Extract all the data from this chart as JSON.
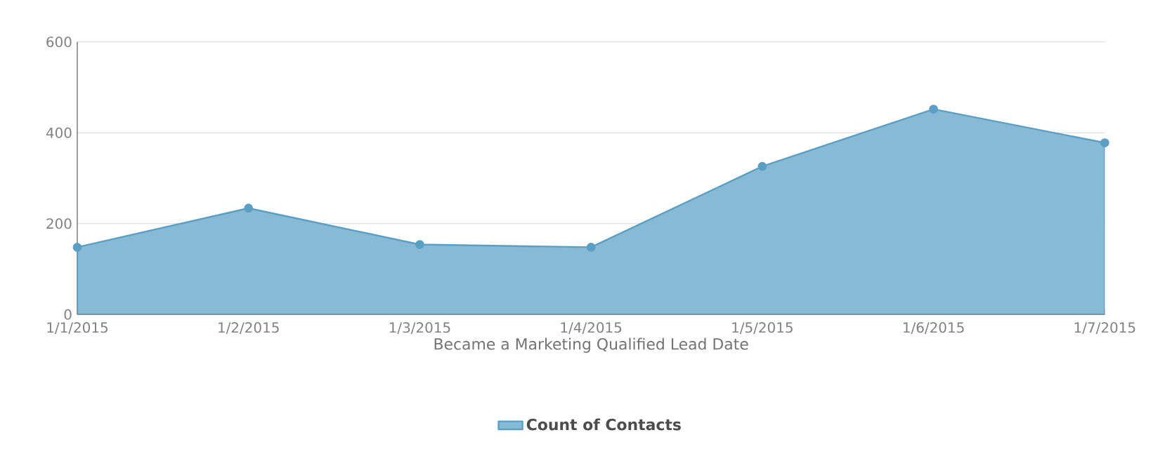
{
  "chart_data": {
    "type": "area",
    "xlabel": "Became a Marketing Qualified Lead Date",
    "categories": [
      "1/1/2015",
      "1/2/2015",
      "1/3/2015",
      "1/4/2015",
      "1/5/2015",
      "1/6/2015",
      "1/7/2015"
    ],
    "series": [
      {
        "name": "Count of Contacts",
        "color": "#5b9fc4",
        "values": [
          148,
          234,
          154,
          148,
          326,
          452,
          378
        ]
      }
    ],
    "ylim": [
      0,
      600
    ],
    "yticks": [
      0,
      200,
      400,
      600
    ],
    "grid": "y",
    "legend": "bottom",
    "marker": "circle"
  }
}
